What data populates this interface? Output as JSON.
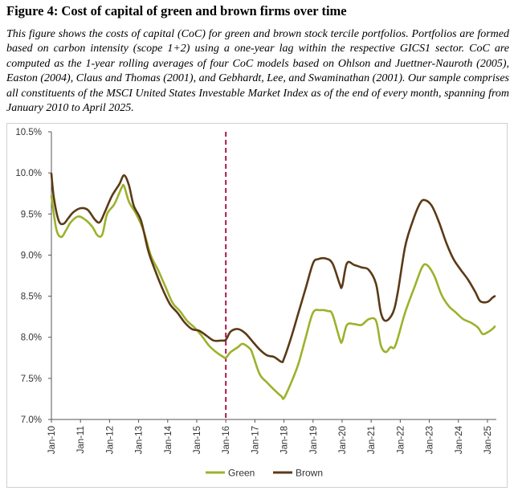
{
  "figure": {
    "title": "Figure 4: Cost of capital of green and brown firms over time",
    "caption": "This figure shows the costs of capital (CoC) for green and brown stock tercile portfolios. Portfolios are formed based on carbon intensity (scope 1+2) using a one-year lag within the respective GICS1 sector. CoC are computed as the 1-year rolling averages of four CoC models based on Ohlson and Juettner-Nauroth (2005), Easton (2004), Claus and Thomas (2001), and Gebhardt, Lee, and Swaminathan (2001). Our sample comprises all constituents of the MSCI United States Investable Market Index as of the end of every month, spanning from January 2010 to April 2025."
  },
  "chart_data": {
    "type": "line",
    "title": "",
    "xlabel": "",
    "ylabel": "",
    "x_unit": "date",
    "x_range": [
      "2010-01",
      "2025-04"
    ],
    "xticks": [
      "Jan-10",
      "Jan-11",
      "Jan-12",
      "Jan-13",
      "Jan-14",
      "Jan-15",
      "Jan-16",
      "Jan-17",
      "Jan-18",
      "Jan-19",
      "Jan-20",
      "Jan-21",
      "Jan-22",
      "Jan-23",
      "Jan-24",
      "Jan-25"
    ],
    "ylim": [
      7.0,
      10.5
    ],
    "yticks": [
      "7.0%",
      "7.5%",
      "8.0%",
      "8.5%",
      "9.0%",
      "9.5%",
      "10.0%",
      "10.5%"
    ],
    "grid": false,
    "legend": "bottom",
    "reference_line": {
      "date": "2016-01",
      "style": "dashed",
      "color": "#a8174f"
    },
    "series": [
      {
        "name": "Green",
        "color": "#9cb22c",
        "points": [
          [
            "2010-01",
            9.72
          ],
          [
            "2010-03",
            9.32
          ],
          [
            "2010-05",
            9.22
          ],
          [
            "2010-07",
            9.3
          ],
          [
            "2010-09",
            9.4
          ],
          [
            "2010-12",
            9.47
          ],
          [
            "2011-03",
            9.43
          ],
          [
            "2011-06",
            9.34
          ],
          [
            "2011-08",
            9.24
          ],
          [
            "2011-10",
            9.25
          ],
          [
            "2011-12",
            9.5
          ],
          [
            "2012-03",
            9.62
          ],
          [
            "2012-06",
            9.82
          ],
          [
            "2012-07",
            9.84
          ],
          [
            "2012-09",
            9.65
          ],
          [
            "2012-12",
            9.5
          ],
          [
            "2013-03",
            9.3
          ],
          [
            "2013-06",
            9.0
          ],
          [
            "2013-09",
            8.82
          ],
          [
            "2013-12",
            8.62
          ],
          [
            "2014-03",
            8.42
          ],
          [
            "2014-06",
            8.32
          ],
          [
            "2014-09",
            8.2
          ],
          [
            "2014-12",
            8.12
          ],
          [
            "2015-03",
            8.02
          ],
          [
            "2015-06",
            7.9
          ],
          [
            "2015-09",
            7.82
          ],
          [
            "2015-12",
            7.76
          ],
          [
            "2016-01",
            7.75
          ],
          [
            "2016-03",
            7.82
          ],
          [
            "2016-06",
            7.88
          ],
          [
            "2016-08",
            7.92
          ],
          [
            "2016-11",
            7.86
          ],
          [
            "2016-12",
            7.8
          ],
          [
            "2017-03",
            7.55
          ],
          [
            "2017-06",
            7.45
          ],
          [
            "2017-09",
            7.36
          ],
          [
            "2017-12",
            7.28
          ],
          [
            "2018-01",
            7.26
          ],
          [
            "2018-04",
            7.45
          ],
          [
            "2018-07",
            7.68
          ],
          [
            "2018-10",
            8.0
          ],
          [
            "2019-01",
            8.3
          ],
          [
            "2019-04",
            8.33
          ],
          [
            "2019-07",
            8.32
          ],
          [
            "2019-09",
            8.28
          ],
          [
            "2019-12",
            7.98
          ],
          [
            "2020-01",
            7.95
          ],
          [
            "2020-03",
            8.15
          ],
          [
            "2020-06",
            8.16
          ],
          [
            "2020-09",
            8.15
          ],
          [
            "2020-12",
            8.22
          ],
          [
            "2021-03",
            8.2
          ],
          [
            "2021-05",
            7.9
          ],
          [
            "2021-07",
            7.82
          ],
          [
            "2021-09",
            7.88
          ],
          [
            "2021-11",
            7.9
          ],
          [
            "2022-03",
            8.3
          ],
          [
            "2022-07",
            8.62
          ],
          [
            "2022-10",
            8.85
          ],
          [
            "2022-12",
            8.88
          ],
          [
            "2023-03",
            8.75
          ],
          [
            "2023-06",
            8.52
          ],
          [
            "2023-09",
            8.38
          ],
          [
            "2023-12",
            8.3
          ],
          [
            "2024-03",
            8.22
          ],
          [
            "2024-06",
            8.18
          ],
          [
            "2024-09",
            8.12
          ],
          [
            "2024-11",
            8.04
          ],
          [
            "2025-01",
            8.06
          ],
          [
            "2025-03",
            8.1
          ],
          [
            "2025-04",
            8.13
          ]
        ]
      },
      {
        "name": "Brown",
        "color": "#5b3a16",
        "points": [
          [
            "2010-01",
            9.99
          ],
          [
            "2010-02",
            9.7
          ],
          [
            "2010-04",
            9.42
          ],
          [
            "2010-06",
            9.38
          ],
          [
            "2010-08",
            9.45
          ],
          [
            "2010-10",
            9.52
          ],
          [
            "2011-01",
            9.57
          ],
          [
            "2011-04",
            9.55
          ],
          [
            "2011-07",
            9.43
          ],
          [
            "2011-09",
            9.4
          ],
          [
            "2011-11",
            9.52
          ],
          [
            "2012-02",
            9.72
          ],
          [
            "2012-05",
            9.86
          ],
          [
            "2012-07",
            9.97
          ],
          [
            "2012-09",
            9.85
          ],
          [
            "2012-11",
            9.6
          ],
          [
            "2013-02",
            9.42
          ],
          [
            "2013-05",
            9.05
          ],
          [
            "2013-08",
            8.8
          ],
          [
            "2013-11",
            8.58
          ],
          [
            "2014-02",
            8.4
          ],
          [
            "2014-05",
            8.3
          ],
          [
            "2014-08",
            8.18
          ],
          [
            "2014-11",
            8.1
          ],
          [
            "2015-02",
            8.08
          ],
          [
            "2015-05",
            8.02
          ],
          [
            "2015-08",
            7.96
          ],
          [
            "2015-11",
            7.96
          ],
          [
            "2016-01",
            7.97
          ],
          [
            "2016-03",
            8.07
          ],
          [
            "2016-06",
            8.1
          ],
          [
            "2016-09",
            8.05
          ],
          [
            "2016-12",
            7.95
          ],
          [
            "2017-03",
            7.85
          ],
          [
            "2017-06",
            7.78
          ],
          [
            "2017-09",
            7.76
          ],
          [
            "2017-12",
            7.7
          ],
          [
            "2018-01",
            7.74
          ],
          [
            "2018-04",
            8.0
          ],
          [
            "2018-07",
            8.3
          ],
          [
            "2018-10",
            8.6
          ],
          [
            "2019-01",
            8.9
          ],
          [
            "2019-03",
            8.95
          ],
          [
            "2019-06",
            8.96
          ],
          [
            "2019-09",
            8.9
          ],
          [
            "2019-12",
            8.65
          ],
          [
            "2020-01",
            8.62
          ],
          [
            "2020-03",
            8.9
          ],
          [
            "2020-06",
            8.88
          ],
          [
            "2020-09",
            8.85
          ],
          [
            "2020-12",
            8.82
          ],
          [
            "2021-03",
            8.65
          ],
          [
            "2021-05",
            8.3
          ],
          [
            "2021-07",
            8.2
          ],
          [
            "2021-10",
            8.3
          ],
          [
            "2021-12",
            8.55
          ],
          [
            "2022-03",
            9.1
          ],
          [
            "2022-06",
            9.4
          ],
          [
            "2022-09",
            9.62
          ],
          [
            "2022-11",
            9.67
          ],
          [
            "2023-02",
            9.6
          ],
          [
            "2023-05",
            9.4
          ],
          [
            "2023-08",
            9.15
          ],
          [
            "2023-11",
            8.95
          ],
          [
            "2024-02",
            8.82
          ],
          [
            "2024-05",
            8.7
          ],
          [
            "2024-08",
            8.55
          ],
          [
            "2024-10",
            8.44
          ],
          [
            "2025-01",
            8.43
          ],
          [
            "2025-03",
            8.48
          ],
          [
            "2025-04",
            8.5
          ]
        ]
      }
    ]
  }
}
